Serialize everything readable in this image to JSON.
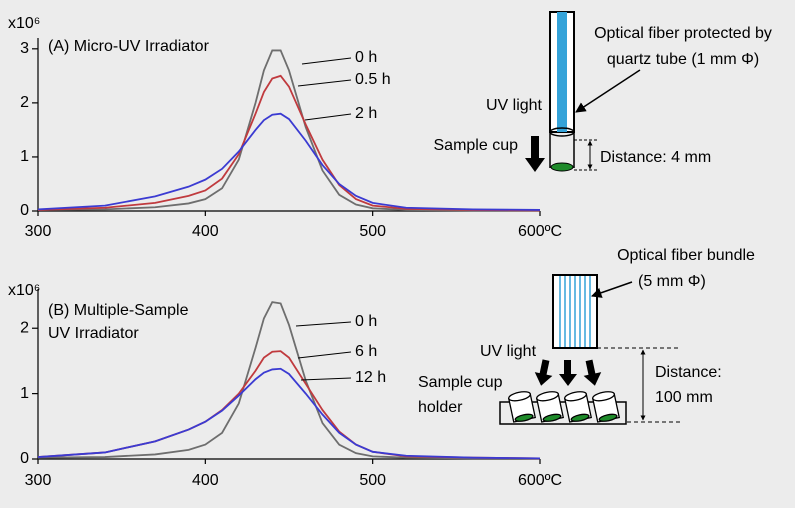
{
  "chart_data": [
    {
      "type": "line",
      "title": [
        "(A) Micro-UV Irradiator"
      ],
      "y_unit": "x10⁶",
      "x": [
        300,
        340,
        370,
        390,
        400,
        410,
        420,
        430,
        435,
        440,
        445,
        450,
        460,
        470,
        480,
        490,
        500,
        520,
        560,
        600
      ],
      "series": [
        {
          "name": "0 h",
          "color": "#6e6e6e",
          "values": [
            0.02,
            0.03,
            0.07,
            0.14,
            0.22,
            0.42,
            0.95,
            2.0,
            2.6,
            2.97,
            2.97,
            2.6,
            1.55,
            0.75,
            0.3,
            0.12,
            0.05,
            0.02,
            0.01,
            0.01
          ]
        },
        {
          "name": "0.5 h",
          "color": "#c03a3e",
          "values": [
            0.02,
            0.06,
            0.15,
            0.28,
            0.38,
            0.6,
            1.05,
            1.8,
            2.2,
            2.45,
            2.5,
            2.3,
            1.6,
            0.95,
            0.48,
            0.22,
            0.1,
            0.04,
            0.02,
            0.01
          ]
        },
        {
          "name": "2 h",
          "color": "#3b3bd2",
          "values": [
            0.03,
            0.1,
            0.27,
            0.45,
            0.58,
            0.78,
            1.1,
            1.5,
            1.68,
            1.78,
            1.8,
            1.7,
            1.3,
            0.85,
            0.5,
            0.28,
            0.15,
            0.06,
            0.03,
            0.02
          ]
        }
      ],
      "xlim": [
        300,
        600
      ],
      "xticks": [
        300,
        400,
        500,
        {
          "value": 600,
          "label": "600ºC"
        }
      ],
      "ylim": [
        0,
        3.2
      ],
      "yticks": [
        0,
        1,
        2,
        3
      ]
    },
    {
      "type": "line",
      "title": [
        "(B) Multiple-Sample",
        "UV Irradiator"
      ],
      "y_unit": "x10⁶",
      "x": [
        300,
        340,
        370,
        390,
        400,
        410,
        420,
        430,
        435,
        440,
        445,
        450,
        460,
        470,
        480,
        490,
        500,
        520,
        560,
        600
      ],
      "series": [
        {
          "name": "0 h",
          "color": "#6e6e6e",
          "values": [
            0.02,
            0.03,
            0.07,
            0.14,
            0.22,
            0.4,
            0.85,
            1.7,
            2.15,
            2.4,
            2.38,
            2.05,
            1.2,
            0.55,
            0.22,
            0.09,
            0.04,
            0.02,
            0.01,
            0.01
          ]
        },
        {
          "name": "6 h",
          "color": "#c03a3e",
          "values": [
            0.03,
            0.1,
            0.27,
            0.45,
            0.57,
            0.75,
            1.0,
            1.35,
            1.55,
            1.64,
            1.65,
            1.55,
            1.15,
            0.75,
            0.42,
            0.22,
            0.11,
            0.04,
            0.02,
            0.01
          ]
        },
        {
          "name": "12 h",
          "color": "#3b3bd2",
          "values": [
            0.03,
            0.1,
            0.27,
            0.45,
            0.57,
            0.74,
            0.97,
            1.22,
            1.32,
            1.37,
            1.38,
            1.3,
            1.0,
            0.68,
            0.4,
            0.22,
            0.11,
            0.05,
            0.02,
            0.01
          ]
        }
      ],
      "xlim": [
        300,
        600
      ],
      "xticks": [
        300,
        400,
        500,
        {
          "value": 600,
          "label": "600ºC"
        }
      ],
      "ylim": [
        0,
        2.6
      ],
      "yticks": [
        0,
        1,
        2
      ]
    }
  ],
  "diagrams": [
    {
      "fiber": [
        "Optical fiber protected by",
        "quartz tube (1 mm Φ)"
      ],
      "light": "UV light",
      "cup": [
        "Sample cup"
      ],
      "distance": [
        "Distance: 4 mm"
      ]
    },
    {
      "fiber": [
        "Optical fiber bundle",
        "(5 mm Φ)"
      ],
      "light": "UV light",
      "cup": [
        "Sample cup",
        "holder"
      ],
      "distance": [
        "Distance:",
        "100 mm"
      ]
    }
  ]
}
